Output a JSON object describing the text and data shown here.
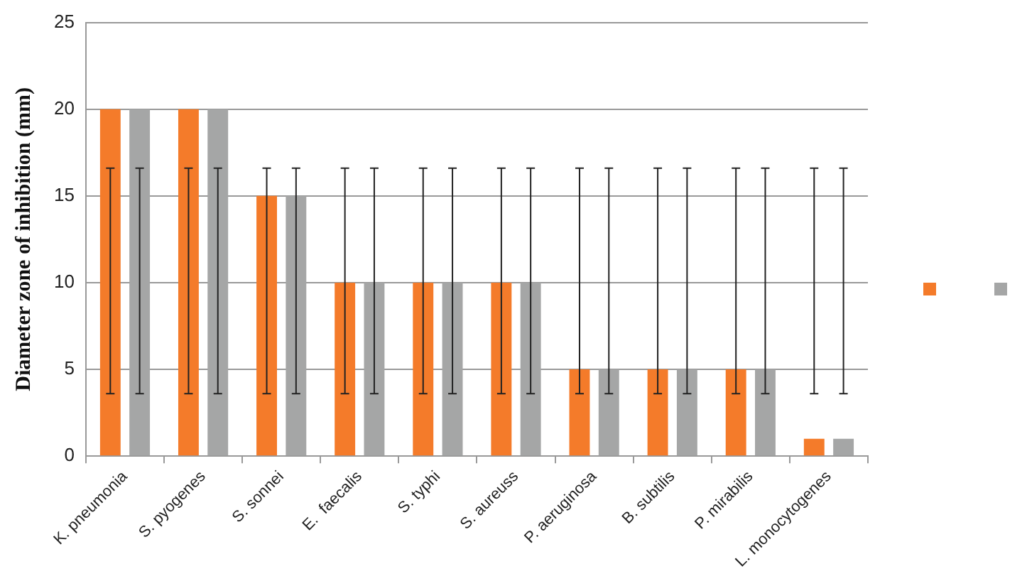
{
  "chart_data": {
    "type": "bar",
    "ylabel": "Diameter zone of inhibition (mm)",
    "categories": [
      "K. pneumonia",
      "S. pyogenes",
      "S. sonnei",
      "E.  faecalis",
      "S. typhi",
      "S. aureuss",
      "P. aeruginosa",
      "B. subtilis",
      "P. mirabilis",
      "L. monocytogenes"
    ],
    "series": [
      {
        "color": "#f47b2a",
        "values": [
          20,
          20,
          15,
          10,
          10,
          10,
          5,
          5,
          5,
          1
        ],
        "errors": [
          [
            3.6,
            16.6
          ],
          [
            3.6,
            16.6
          ],
          [
            3.6,
            16.6
          ],
          [
            3.6,
            16.6
          ],
          [
            3.6,
            16.6
          ],
          [
            3.6,
            16.6
          ],
          [
            3.6,
            16.6
          ],
          [
            3.6,
            16.6
          ],
          [
            3.6,
            16.6
          ],
          [
            3.6,
            16.6
          ]
        ]
      },
      {
        "color": "#a5a6a6",
        "values": [
          20,
          20,
          15,
          10,
          10,
          10,
          5,
          5,
          5,
          1
        ],
        "errors": [
          [
            3.6,
            16.6
          ],
          [
            3.6,
            16.6
          ],
          [
            3.6,
            16.6
          ],
          [
            3.6,
            16.6
          ],
          [
            3.6,
            16.6
          ],
          [
            3.6,
            16.6
          ],
          [
            3.6,
            16.6
          ],
          [
            3.6,
            16.6
          ],
          [
            3.6,
            16.6
          ],
          [
            3.6,
            16.6
          ]
        ]
      }
    ],
    "ylim": [
      0,
      25
    ],
    "yticks": [
      0,
      5,
      10,
      15,
      20,
      25
    ],
    "grid": "y"
  }
}
